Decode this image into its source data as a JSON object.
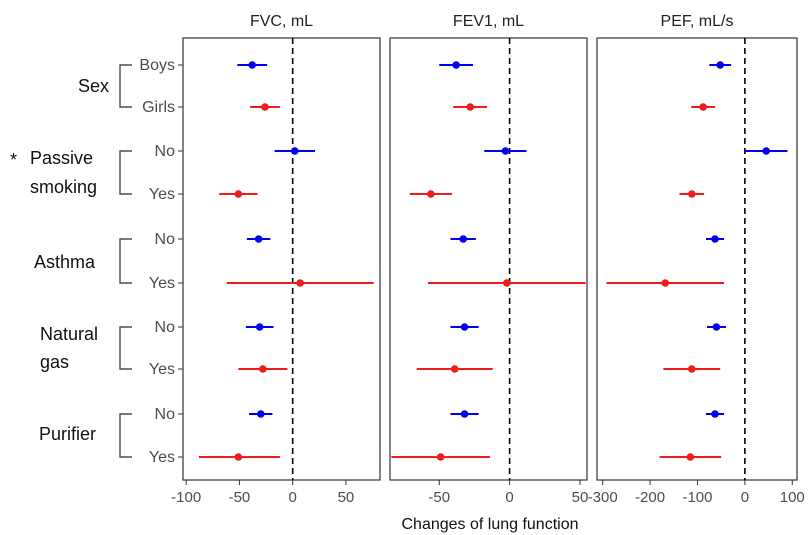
{
  "colors": {
    "boys_no": "#0000ee",
    "girls_yes": "#ee1c1c",
    "panel_border": "#333333",
    "zero_line": "#000000"
  },
  "chart_data": {
    "type": "forest",
    "xlabel": "Changes of lung function",
    "significance_marker": "*",
    "groups": [
      {
        "label": "Sex",
        "lines": [
          "Sex"
        ],
        "starred": false,
        "rows": [
          "Boys",
          "Girls"
        ]
      },
      {
        "label": "Passive smoking",
        "lines": [
          "Passive",
          "smoking"
        ],
        "starred": true,
        "rows": [
          "No",
          "Yes"
        ]
      },
      {
        "label": "Asthma",
        "lines": [
          "Asthma"
        ],
        "starred": false,
        "rows": [
          "No",
          "Yes"
        ]
      },
      {
        "label": "Natural gas",
        "lines": [
          "Natural",
          "gas"
        ],
        "starred": false,
        "rows": [
          "No",
          "Yes"
        ]
      },
      {
        "label": "Purifier",
        "lines": [
          "Purifier"
        ],
        "starred": false,
        "rows": [
          "No",
          "Yes"
        ]
      }
    ],
    "panels": [
      {
        "title": "FVC, mL",
        "xlim": [
          -103,
          82
        ],
        "ticks": [
          -100,
          -50,
          0,
          50
        ],
        "tick_labels": [
          "-100",
          "-50",
          "0",
          "50"
        ],
        "points": [
          {
            "est": -38,
            "lo": -52,
            "hi": -24
          },
          {
            "est": -26,
            "lo": -40,
            "hi": -12
          },
          {
            "est": 2,
            "lo": -17,
            "hi": 21
          },
          {
            "est": -51,
            "lo": -69,
            "hi": -33
          },
          {
            "est": -32,
            "lo": -43,
            "hi": -21
          },
          {
            "est": 7,
            "lo": -62,
            "hi": 76
          },
          {
            "est": -31,
            "lo": -44,
            "hi": -18
          },
          {
            "est": -28,
            "lo": -51,
            "hi": -5
          },
          {
            "est": -30,
            "lo": -41,
            "hi": -19
          },
          {
            "est": -51,
            "lo": -88,
            "hi": -12
          }
        ]
      },
      {
        "title": "FEV1, mL",
        "xlim": [
          -85,
          55
        ],
        "ticks": [
          -50,
          0,
          50
        ],
        "tick_labels": [
          "-50",
          "0",
          "50"
        ],
        "points": [
          {
            "est": -38,
            "lo": -50,
            "hi": -26
          },
          {
            "est": -28,
            "lo": -40,
            "hi": -16
          },
          {
            "est": -3,
            "lo": -18,
            "hi": 12
          },
          {
            "est": -56,
            "lo": -71,
            "hi": -41
          },
          {
            "est": -33,
            "lo": -42,
            "hi": -24
          },
          {
            "est": -2,
            "lo": -58,
            "hi": 54
          },
          {
            "est": -32,
            "lo": -42,
            "hi": -22
          },
          {
            "est": -39,
            "lo": -66,
            "hi": -12
          },
          {
            "est": -32,
            "lo": -42,
            "hi": -22
          },
          {
            "est": -49,
            "lo": -84,
            "hi": -14
          }
        ]
      },
      {
        "title": "PEF, mL/s",
        "xlim": [
          -312,
          110
        ],
        "ticks": [
          -300,
          -200,
          -100,
          0,
          100
        ],
        "tick_labels": [
          "-300",
          "-200",
          "-100",
          "0",
          "100"
        ],
        "points": [
          {
            "est": -52,
            "lo": -75,
            "hi": -29
          },
          {
            "est": -88,
            "lo": -113,
            "hi": -63
          },
          {
            "est": 45,
            "lo": 0,
            "hi": 90
          },
          {
            "est": -112,
            "lo": -138,
            "hi": -86
          },
          {
            "est": -63,
            "lo": -82,
            "hi": -44
          },
          {
            "est": -168,
            "lo": -292,
            "hi": -44
          },
          {
            "est": -60,
            "lo": -80,
            "hi": -40
          },
          {
            "est": -112,
            "lo": -172,
            "hi": -52
          },
          {
            "est": -63,
            "lo": -82,
            "hi": -44
          },
          {
            "est": -115,
            "lo": -180,
            "hi": -50
          }
        ]
      }
    ]
  }
}
